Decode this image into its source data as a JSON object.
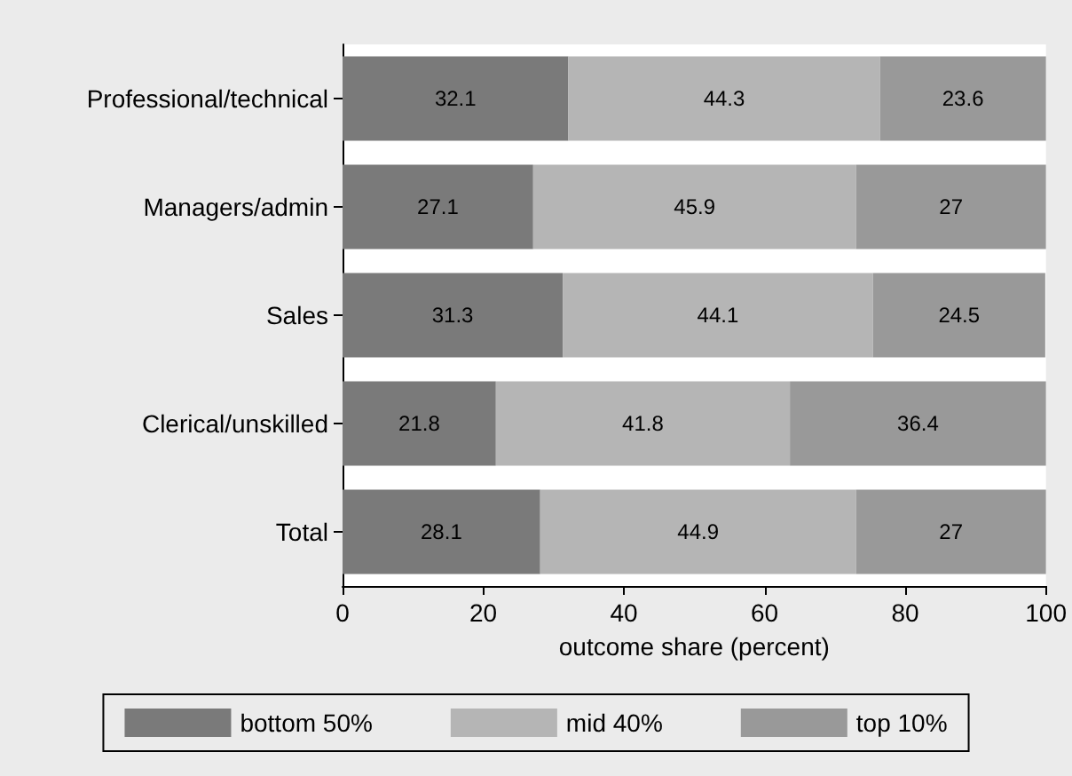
{
  "chart_data": {
    "type": "bar",
    "orientation": "horizontal",
    "stacked": true,
    "data_labels": true,
    "xlabel": "outcome share (percent)",
    "categories": [
      "Professional/technical",
      "Managers/admin",
      "Sales",
      "Clerical/unskilled",
      "Total"
    ],
    "series": [
      {
        "name": "bottom 50%",
        "color": "#7a7a7a",
        "values": [
          32.1,
          27.1,
          31.3,
          21.8,
          28.1
        ]
      },
      {
        "name": "mid 40%",
        "color": "#b5b5b5",
        "values": [
          44.3,
          45.9,
          44.1,
          41.8,
          44.9
        ]
      },
      {
        "name": "top 10%",
        "color": "#999999",
        "values": [
          23.6,
          27,
          24.5,
          36.4,
          27
        ]
      }
    ],
    "xlim": [
      0,
      100
    ],
    "xticks": [
      0,
      20,
      40,
      60,
      80,
      100
    ],
    "grid": false,
    "legend": "bottom"
  }
}
